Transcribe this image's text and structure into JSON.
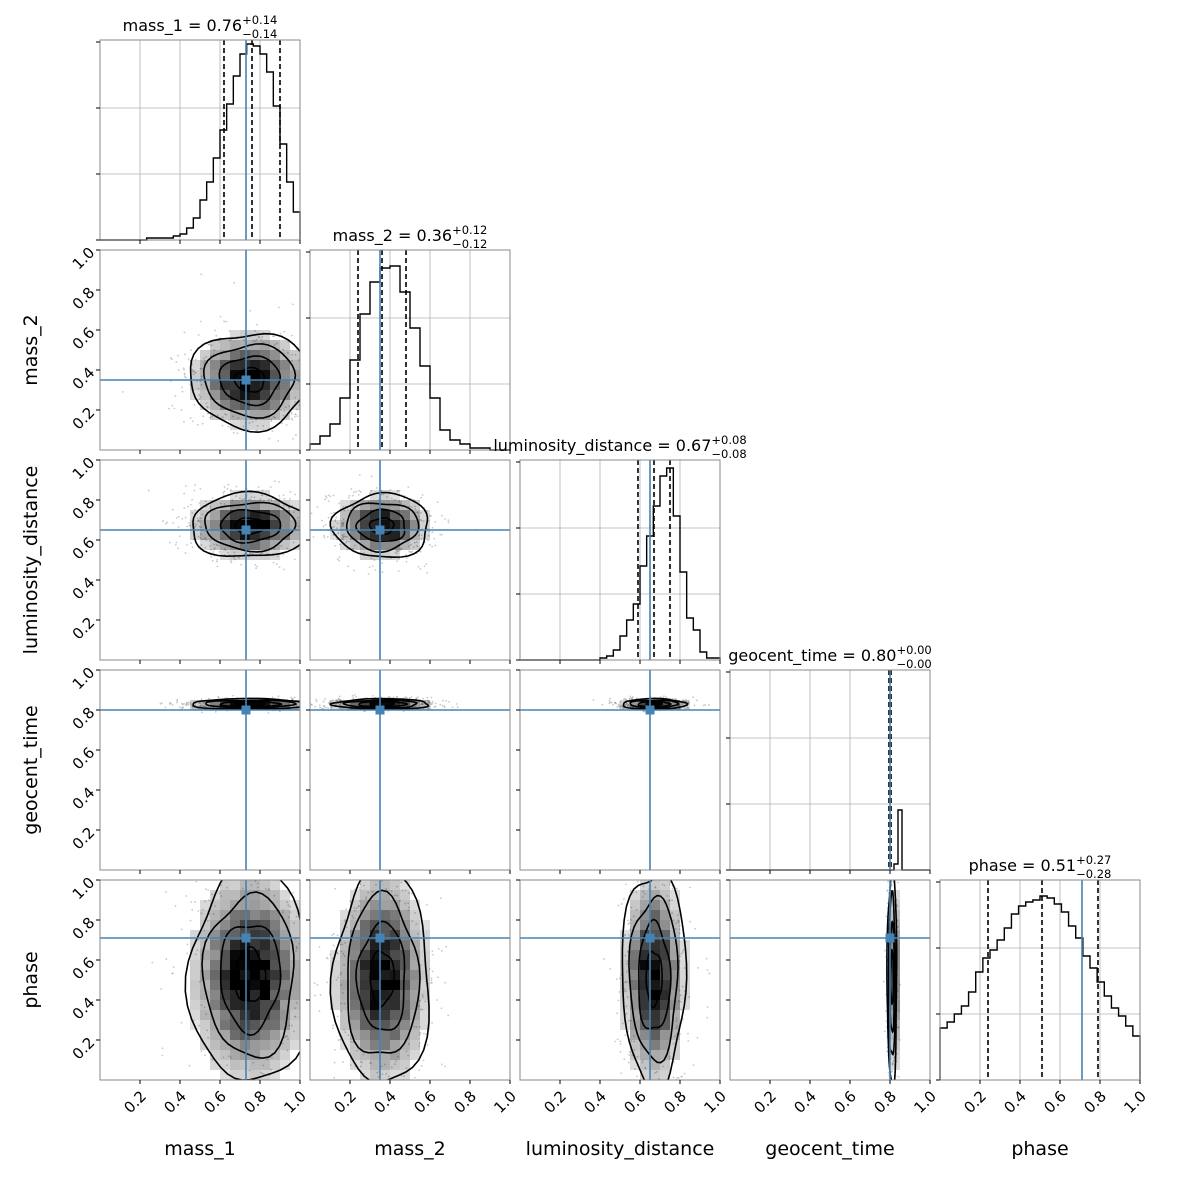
{
  "chart_data": {
    "type": "corner",
    "parameters": [
      "mass_1",
      "mass_2",
      "luminosity_distance",
      "geocent_time",
      "phase"
    ],
    "range": [
      0,
      1
    ],
    "tick_values": [
      0.2,
      0.4,
      0.6,
      0.8,
      1.0
    ],
    "tick_labels": [
      "0.2",
      "0.4",
      "0.6",
      "0.8",
      "1.0"
    ],
    "truth": {
      "mass_1": 0.73,
      "mass_2": 0.35,
      "luminosity_distance": 0.65,
      "geocent_time": 0.8,
      "phase": 0.71
    },
    "colors": {
      "truth": "#4682b4",
      "hist": "#000000",
      "grid": "#b0b0b0",
      "contour": "#000000",
      "density": "#000000"
    },
    "diagonal": [
      {
        "param": "mass_1",
        "title_lhs": "mass_1 = 0.76",
        "sup": "+0.14",
        "sub": "−0.14",
        "quantiles": [
          0.62,
          0.76,
          0.9
        ],
        "truth": 0.73,
        "hist": [
          0,
          0,
          0,
          0,
          0,
          0,
          0,
          0.01,
          0.01,
          0.01,
          0.01,
          0.02,
          0.03,
          0.06,
          0.11,
          0.2,
          0.29,
          0.41,
          0.55,
          0.68,
          0.82,
          0.93,
          0.98,
          0.97,
          0.93,
          0.84,
          0.67,
          0.48,
          0.29,
          0.14
        ]
      },
      {
        "param": "mass_2",
        "title_lhs": "mass_2 = 0.36",
        "sup": "+0.12",
        "sub": "−0.12",
        "quantiles": [
          0.24,
          0.36,
          0.48
        ],
        "truth": 0.35,
        "hist": [
          0.03,
          0.07,
          0.13,
          0.26,
          0.45,
          0.68,
          0.84,
          0.91,
          0.92,
          0.79,
          0.61,
          0.42,
          0.26,
          0.1,
          0.05,
          0.03,
          0.01,
          0.01,
          0,
          0
        ]
      },
      {
        "param": "luminosity_distance",
        "title_lhs": "luminosity_distance = 0.67",
        "sup": "+0.08",
        "sub": "−0.08",
        "quantiles": [
          0.59,
          0.67,
          0.75
        ],
        "truth": 0.65,
        "hist": [
          0,
          0,
          0,
          0,
          0,
          0,
          0,
          0,
          0,
          0,
          0,
          0,
          0.01,
          0.02,
          0.05,
          0.12,
          0.2,
          0.28,
          0.47,
          0.62,
          0.77,
          0.92,
          0.96,
          0.72,
          0.44,
          0.21,
          0.15,
          0.04,
          0.01,
          0.01
        ]
      },
      {
        "param": "geocent_time",
        "title_lhs": "geocent_time = 0.80",
        "sup": "+0.00",
        "sub": "−0.00",
        "quantiles": [
          0.795,
          0.8,
          0.805
        ],
        "truth": 0.8,
        "hist": [
          0,
          0,
          0,
          0,
          0,
          0,
          0,
          0,
          0,
          0,
          0,
          0,
          0,
          0,
          0,
          0,
          0,
          0,
          0,
          0,
          0,
          0,
          0,
          0,
          0,
          0,
          0,
          0,
          0,
          0,
          0,
          0,
          0,
          0,
          0,
          0,
          0,
          0,
          0,
          0,
          0,
          0.03,
          0.3,
          0,
          0,
          0,
          0,
          0,
          0,
          0
        ]
      },
      {
        "param": "phase",
        "title_lhs": "phase = 0.51",
        "sup": "+0.27",
        "sub": "−0.28",
        "quantiles": [
          0.24,
          0.51,
          0.79
        ],
        "truth": 0.71,
        "hist": [
          0.26,
          0.29,
          0.33,
          0.37,
          0.44,
          0.54,
          0.61,
          0.65,
          0.7,
          0.76,
          0.83,
          0.87,
          0.89,
          0.9,
          0.92,
          0.91,
          0.88,
          0.84,
          0.77,
          0.71,
          0.62,
          0.56,
          0.49,
          0.42,
          0.36,
          0.32,
          0.27,
          0.22
        ]
      }
    ],
    "pairs": [
      {
        "x": "mass_1",
        "y": "mass_2",
        "cx": 0.75,
        "cy": 0.35,
        "sx": 0.15,
        "sy": 0.12
      },
      {
        "x": "mass_1",
        "y": "luminosity_distance",
        "cx": 0.75,
        "cy": 0.67,
        "sx": 0.15,
        "sy": 0.08
      },
      {
        "x": "mass_2",
        "y": "luminosity_distance",
        "cx": 0.36,
        "cy": 0.67,
        "sx": 0.12,
        "sy": 0.08
      },
      {
        "x": "mass_1",
        "y": "geocent_time",
        "cx": 0.75,
        "cy": 0.83,
        "sx": 0.15,
        "sy": 0.013
      },
      {
        "x": "mass_2",
        "y": "geocent_time",
        "cx": 0.36,
        "cy": 0.83,
        "sx": 0.12,
        "sy": 0.013
      },
      {
        "x": "luminosity_distance",
        "y": "geocent_time",
        "cx": 0.67,
        "cy": 0.83,
        "sx": 0.08,
        "sy": 0.013
      },
      {
        "x": "mass_1",
        "y": "phase",
        "cx": 0.75,
        "cy": 0.52,
        "sx": 0.15,
        "sy": 0.27
      },
      {
        "x": "mass_2",
        "y": "phase",
        "cx": 0.36,
        "cy": 0.51,
        "sx": 0.12,
        "sy": 0.27
      },
      {
        "x": "luminosity_distance",
        "y": "phase",
        "cx": 0.67,
        "cy": 0.51,
        "sx": 0.08,
        "sy": 0.27
      },
      {
        "x": "geocent_time",
        "y": "phase",
        "cx": 0.81,
        "cy": 0.51,
        "sx": 0.012,
        "sy": 0.27
      }
    ],
    "contour_levels_sigma": [
      0.5,
      1.0,
      1.5,
      2.0
    ]
  }
}
